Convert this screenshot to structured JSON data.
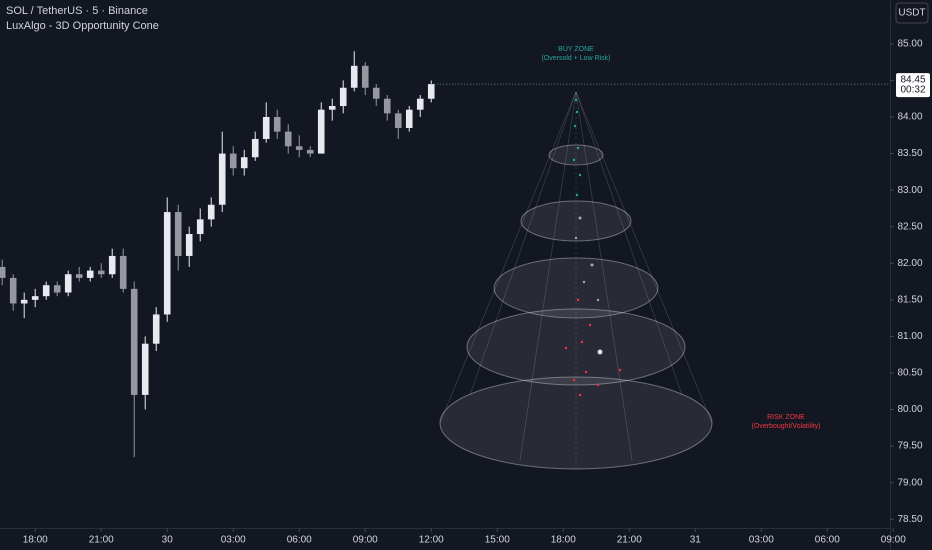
{
  "chart_data": {
    "type": "candlestick",
    "title": "SOL / TetherUS · 5 · Binance",
    "subtitle": "LuxAlgo - 3D Opportunity Cone",
    "currency": "USDT",
    "countdown": "00:32",
    "up_color": "#e8eaf0",
    "down_color": "#9598a1",
    "grid": false,
    "x": [
      16.5,
      17,
      17.5,
      18,
      18.5,
      19,
      19.5,
      20,
      20.5,
      21,
      21.5,
      22,
      22.5,
      23,
      23.5,
      24,
      24.5,
      25,
      25.5,
      26,
      26.5,
      27,
      27.5,
      28,
      28.5,
      29,
      29.5,
      30,
      30.5,
      31,
      31.5,
      32,
      32.5,
      33,
      33.5,
      34,
      34.5,
      35,
      35.5,
      36
    ],
    "open": [
      81.95,
      81.8,
      81.45,
      81.5,
      81.55,
      81.7,
      81.6,
      81.85,
      81.8,
      81.9,
      81.85,
      82.1,
      81.65,
      80.2,
      80.9,
      81.3,
      82.7,
      82.1,
      82.4,
      82.6,
      82.8,
      83.5,
      83.3,
      83.45,
      83.7,
      84.0,
      83.8,
      83.6,
      83.55,
      83.5,
      84.1,
      84.15,
      84.4,
      84.7,
      84.4,
      84.25,
      84.05,
      83.85,
      84.1,
      84.25
    ],
    "high": [
      82.05,
      81.85,
      81.6,
      81.65,
      81.75,
      81.75,
      81.9,
      81.95,
      81.95,
      82.0,
      82.2,
      82.2,
      81.75,
      81.0,
      81.4,
      82.9,
      82.8,
      82.5,
      82.75,
      82.9,
      83.8,
      83.6,
      83.55,
      83.8,
      84.2,
      84.1,
      83.9,
      83.75,
      83.6,
      84.2,
      84.25,
      84.5,
      84.9,
      84.75,
      84.45,
      84.3,
      84.1,
      84.15,
      84.3,
      84.5
    ],
    "low": [
      81.7,
      81.35,
      81.25,
      81.4,
      81.5,
      81.55,
      81.55,
      81.75,
      81.75,
      81.8,
      81.8,
      81.6,
      79.35,
      80.0,
      80.8,
      81.2,
      81.9,
      81.95,
      82.3,
      82.5,
      82.7,
      83.2,
      83.2,
      83.4,
      83.65,
      83.7,
      83.5,
      83.45,
      83.45,
      83.5,
      83.95,
      84.05,
      84.35,
      84.3,
      84.15,
      83.95,
      83.7,
      83.8,
      84.0,
      84.2
    ],
    "close": [
      81.8,
      81.45,
      81.5,
      81.55,
      81.7,
      81.6,
      81.85,
      81.8,
      81.9,
      81.85,
      82.1,
      81.65,
      80.2,
      80.9,
      81.3,
      82.7,
      82.1,
      82.4,
      82.6,
      82.8,
      83.5,
      83.3,
      83.45,
      83.7,
      84.0,
      83.8,
      83.6,
      83.55,
      83.5,
      84.1,
      84.15,
      84.4,
      84.7,
      84.4,
      84.25,
      84.05,
      83.85,
      84.1,
      84.25,
      84.45
    ],
    "xlim": [
      16.4,
      56.85
    ],
    "xticks": [
      {
        "value": 18,
        "label": "18:00"
      },
      {
        "value": 21,
        "label": "21:00"
      },
      {
        "value": 24,
        "label": "30"
      },
      {
        "value": 27,
        "label": "03:00"
      },
      {
        "value": 30,
        "label": "06:00"
      },
      {
        "value": 33,
        "label": "09:00"
      },
      {
        "value": 36,
        "label": "12:00"
      },
      {
        "value": 39,
        "label": "15:00"
      },
      {
        "value": 42,
        "label": "18:00"
      },
      {
        "value": 45,
        "label": "21:00"
      },
      {
        "value": 48,
        "label": "31"
      },
      {
        "value": 51,
        "label": "03:00"
      },
      {
        "value": 54,
        "label": "06:00"
      },
      {
        "value": 57,
        "label": "09:00"
      }
    ],
    "ylim": [
      78.38,
      85.6
    ],
    "yticks": [
      {
        "value": 78.5,
        "label": "78.50"
      },
      {
        "value": 79,
        "label": "79.00"
      },
      {
        "value": 79.5,
        "label": "79.50"
      },
      {
        "value": 80,
        "label": "80.00"
      },
      {
        "value": 80.5,
        "label": "80.50"
      },
      {
        "value": 81,
        "label": "81.00"
      },
      {
        "value": 81.5,
        "label": "81.50"
      },
      {
        "value": 82,
        "label": "82.00"
      },
      {
        "value": 82.5,
        "label": "82.50"
      },
      {
        "value": 83,
        "label": "83.00"
      },
      {
        "value": 83.5,
        "label": "83.50"
      },
      {
        "value": 84,
        "label": "84.00"
      },
      {
        "value": 84.5,
        "label": "84.50"
      },
      {
        "value": 85,
        "label": "85.00"
      }
    ],
    "annotations": {
      "buy_zone": {
        "title": "BUY ZONE",
        "subtitle": "(Oversold + Low Risk)"
      },
      "risk_zone": {
        "title": "RISK ZONE",
        "subtitle": "(Overbought/Volatility)"
      }
    }
  }
}
